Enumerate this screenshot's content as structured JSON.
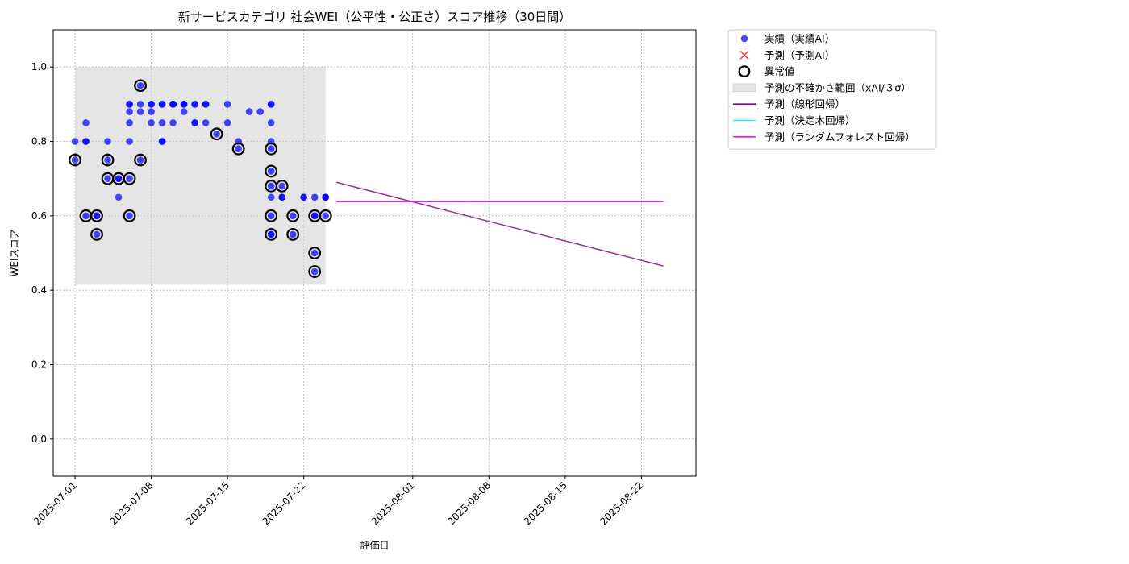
{
  "chart_data": {
    "type": "scatter",
    "title": "新サービスカテゴリ 社会WEI（公平性・公正さ）スコア推移（30日間）",
    "xlabel": "評価日",
    "ylabel": "WEIスコア",
    "ylim": [
      -0.1,
      1.1
    ],
    "xlim": [
      "2025-06-29",
      "2025-08-27"
    ],
    "y_ticks": [
      0.0,
      0.2,
      0.4,
      0.6,
      0.8,
      1.0
    ],
    "y_tick_labels": [
      "0.0",
      "0.2",
      "0.4",
      "0.6",
      "0.8",
      "1.0"
    ],
    "x_ticks": [
      "2025-07-01",
      "2025-07-08",
      "2025-07-15",
      "2025-07-22",
      "2025-08-01",
      "2025-08-08",
      "2025-08-15",
      "2025-08-22"
    ],
    "grid": true,
    "legend_position": "outside-top-right",
    "colors": {
      "actual": "#0000ff",
      "forecast_marker": "#ff0000",
      "anomaly": "#000000",
      "uncertainty": "#d3d3d3",
      "linear": "#800080",
      "tree": "#00ffff",
      "forest": "#ff00ff"
    },
    "uncertainty_band": {
      "x_start": "2025-07-01",
      "x_end": "2025-07-24",
      "y_low": 0.415,
      "y_high": 1.0
    },
    "actual_points": [
      [
        "2025-07-01",
        0.75
      ],
      [
        "2025-07-01",
        0.8
      ],
      [
        "2025-07-02",
        0.8
      ],
      [
        "2025-07-02",
        0.8
      ],
      [
        "2025-07-02",
        0.85
      ],
      [
        "2025-07-02",
        0.6
      ],
      [
        "2025-07-03",
        0.6
      ],
      [
        "2025-07-03",
        0.55
      ],
      [
        "2025-07-03",
        0.6
      ],
      [
        "2025-07-04",
        0.75
      ],
      [
        "2025-07-04",
        0.8
      ],
      [
        "2025-07-04",
        0.7
      ],
      [
        "2025-07-05",
        0.7
      ],
      [
        "2025-07-05",
        0.65
      ],
      [
        "2025-07-05",
        0.7
      ],
      [
        "2025-07-06",
        0.7
      ],
      [
        "2025-07-06",
        0.8
      ],
      [
        "2025-07-06",
        0.6
      ],
      [
        "2025-07-06",
        0.85
      ],
      [
        "2025-07-06",
        0.9
      ],
      [
        "2025-07-06",
        0.88
      ],
      [
        "2025-07-06",
        0.9
      ],
      [
        "2025-07-07",
        0.88
      ],
      [
        "2025-07-07",
        0.9
      ],
      [
        "2025-07-07",
        0.95
      ],
      [
        "2025-07-07",
        0.75
      ],
      [
        "2025-07-08",
        0.88
      ],
      [
        "2025-07-08",
        0.9
      ],
      [
        "2025-07-08",
        0.85
      ],
      [
        "2025-07-08",
        0.9
      ],
      [
        "2025-07-09",
        0.9
      ],
      [
        "2025-07-09",
        0.8
      ],
      [
        "2025-07-09",
        0.8
      ],
      [
        "2025-07-09",
        0.85
      ],
      [
        "2025-07-09",
        0.9
      ],
      [
        "2025-07-10",
        0.85
      ],
      [
        "2025-07-10",
        0.9
      ],
      [
        "2025-07-10",
        0.9
      ],
      [
        "2025-07-10",
        0.9
      ],
      [
        "2025-07-11",
        0.9
      ],
      [
        "2025-07-11",
        0.88
      ],
      [
        "2025-07-11",
        0.9
      ],
      [
        "2025-07-11",
        0.9
      ],
      [
        "2025-07-12",
        0.9
      ],
      [
        "2025-07-12",
        0.9
      ],
      [
        "2025-07-12",
        0.85
      ],
      [
        "2025-07-12",
        0.85
      ],
      [
        "2025-07-13",
        0.9
      ],
      [
        "2025-07-13",
        0.9
      ],
      [
        "2025-07-13",
        0.85
      ],
      [
        "2025-07-14",
        0.82
      ],
      [
        "2025-07-15",
        0.85
      ],
      [
        "2025-07-15",
        0.9
      ],
      [
        "2025-07-16",
        0.8
      ],
      [
        "2025-07-16",
        0.78
      ],
      [
        "2025-07-17",
        0.88
      ],
      [
        "2025-07-18",
        0.88
      ],
      [
        "2025-07-19",
        0.85
      ],
      [
        "2025-07-19",
        0.9
      ],
      [
        "2025-07-19",
        0.9
      ],
      [
        "2025-07-19",
        0.8
      ],
      [
        "2025-07-19",
        0.78
      ],
      [
        "2025-07-19",
        0.72
      ],
      [
        "2025-07-19",
        0.68
      ],
      [
        "2025-07-19",
        0.65
      ],
      [
        "2025-07-19",
        0.6
      ],
      [
        "2025-07-19",
        0.55
      ],
      [
        "2025-07-19",
        0.55
      ],
      [
        "2025-07-20",
        0.68
      ],
      [
        "2025-07-20",
        0.65
      ],
      [
        "2025-07-20",
        0.65
      ],
      [
        "2025-07-21",
        0.6
      ],
      [
        "2025-07-21",
        0.55
      ],
      [
        "2025-07-22",
        0.65
      ],
      [
        "2025-07-22",
        0.65
      ],
      [
        "2025-07-23",
        0.6
      ],
      [
        "2025-07-23",
        0.6
      ],
      [
        "2025-07-23",
        0.5
      ],
      [
        "2025-07-23",
        0.45
      ],
      [
        "2025-07-23",
        0.65
      ],
      [
        "2025-07-24",
        0.6
      ],
      [
        "2025-07-24",
        0.65
      ],
      [
        "2025-07-24",
        0.65
      ],
      [
        "2025-07-24",
        0.65
      ]
    ],
    "anomaly_points": [
      [
        "2025-07-01",
        0.75
      ],
      [
        "2025-07-02",
        0.6
      ],
      [
        "2025-07-03",
        0.6
      ],
      [
        "2025-07-03",
        0.55
      ],
      [
        "2025-07-04",
        0.75
      ],
      [
        "2025-07-04",
        0.7
      ],
      [
        "2025-07-05",
        0.7
      ],
      [
        "2025-07-06",
        0.7
      ],
      [
        "2025-07-06",
        0.6
      ],
      [
        "2025-07-07",
        0.95
      ],
      [
        "2025-07-07",
        0.75
      ],
      [
        "2025-07-14",
        0.82
      ],
      [
        "2025-07-16",
        0.78
      ],
      [
        "2025-07-19",
        0.78
      ],
      [
        "2025-07-19",
        0.72
      ],
      [
        "2025-07-19",
        0.68
      ],
      [
        "2025-07-20",
        0.68
      ],
      [
        "2025-07-19",
        0.6
      ],
      [
        "2025-07-19",
        0.55
      ],
      [
        "2025-07-21",
        0.6
      ],
      [
        "2025-07-21",
        0.55
      ],
      [
        "2025-07-23",
        0.6
      ],
      [
        "2025-07-23",
        0.5
      ],
      [
        "2025-07-23",
        0.45
      ],
      [
        "2025-07-24",
        0.6
      ]
    ],
    "series": [
      {
        "name": "予測（線形回帰）",
        "x": [
          "2025-07-25",
          "2025-08-24"
        ],
        "y": [
          0.69,
          0.465
        ]
      },
      {
        "name": "予測（決定木回帰）",
        "x": [
          "2025-07-25",
          "2025-08-24"
        ],
        "y": [
          0.638,
          0.638
        ]
      },
      {
        "name": "予測（ランダムフォレスト回帰）",
        "x": [
          "2025-07-25",
          "2025-08-24"
        ],
        "y": [
          0.638,
          0.638
        ]
      }
    ],
    "legend": [
      {
        "label": "実績（実績AI）",
        "kind": "actual"
      },
      {
        "label": "予測（予測AI）",
        "kind": "forecast_marker"
      },
      {
        "label": "異常値",
        "kind": "anomaly"
      },
      {
        "label": "予測の不確かさ範囲（xAI/３σ）",
        "kind": "uncertainty"
      },
      {
        "label": "予測（線形回帰）",
        "kind": "linear"
      },
      {
        "label": "予測（決定木回帰）",
        "kind": "tree"
      },
      {
        "label": "予測（ランダムフォレスト回帰）",
        "kind": "forest"
      }
    ]
  }
}
